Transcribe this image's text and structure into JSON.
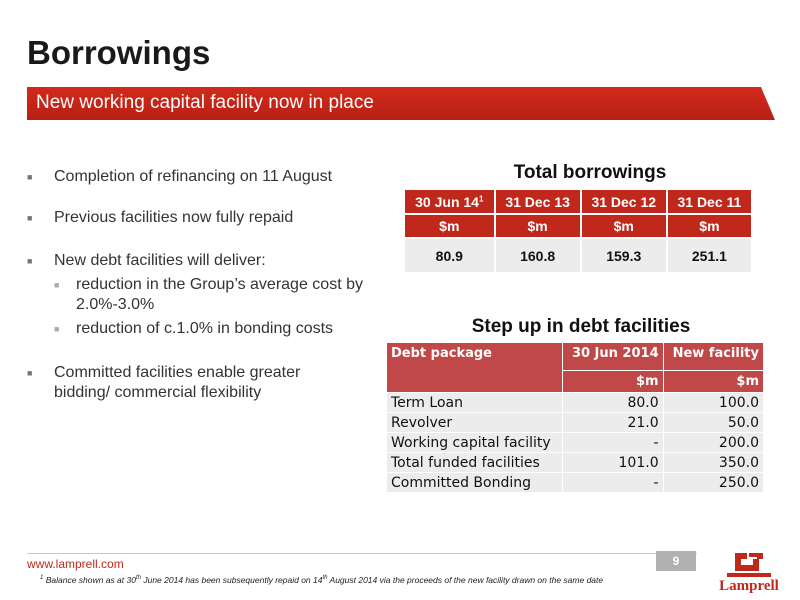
{
  "title": "Borrowings",
  "subtitle": "New working capital facility now in place",
  "bullets": {
    "b1": "Completion of refinancing on 11 August",
    "b2": "Previous facilities now fully repaid",
    "b3": "New debt facilities will deliver:",
    "b3_sub1": "reduction in the Group’s average cost by 2.0%-3.0%",
    "b3_sub2": "reduction of c.1.0% in bonding costs",
    "b4": "Committed facilities enable greater bidding/ commercial flexibility"
  },
  "table1": {
    "title": "Total borrowings",
    "headers": [
      "30 Jun 14",
      "31 Dec 13",
      "31 Dec 12",
      "31 Dec 11"
    ],
    "header_footnote": "1",
    "units": [
      "$m",
      "$m",
      "$m",
      "$m"
    ],
    "values": [
      "80.9",
      "160.8",
      "159.3",
      "251.1"
    ]
  },
  "table2": {
    "title": "Step up in debt facilities",
    "col_package": "Debt package",
    "col_jun": "30 Jun 2014",
    "col_new": "New facility",
    "unit_jun": "$m",
    "unit_new": "$m",
    "rows": [
      {
        "label": "Term Loan",
        "jun": "80.0",
        "new": "100.0"
      },
      {
        "label": "Revolver",
        "jun": "21.0",
        "new": "50.0"
      },
      {
        "label": "Working capital facility",
        "jun": "-",
        "new": "200.0"
      },
      {
        "label": "Total funded facilities",
        "jun": "101.0",
        "new": "350.0"
      },
      {
        "label": "Committed Bonding",
        "jun": "-",
        "new": "250.0"
      }
    ]
  },
  "footer": {
    "url": "www.lamprell.com",
    "page": "9",
    "footnote_mark": "1",
    "footnote_pre": " Balance shown as at 30",
    "footnote_sup1": "th",
    "footnote_mid": " June 2014 has been subsequently repaid on 14",
    "footnote_sup2": "th",
    "footnote_post": " August 2014 via the proceeds of the new facility drawn on the same date",
    "logo_text": "Lamprell"
  },
  "colors": {
    "accent": "#c0281c",
    "table2_header": "#c04848",
    "row_bg": "#ececec"
  }
}
